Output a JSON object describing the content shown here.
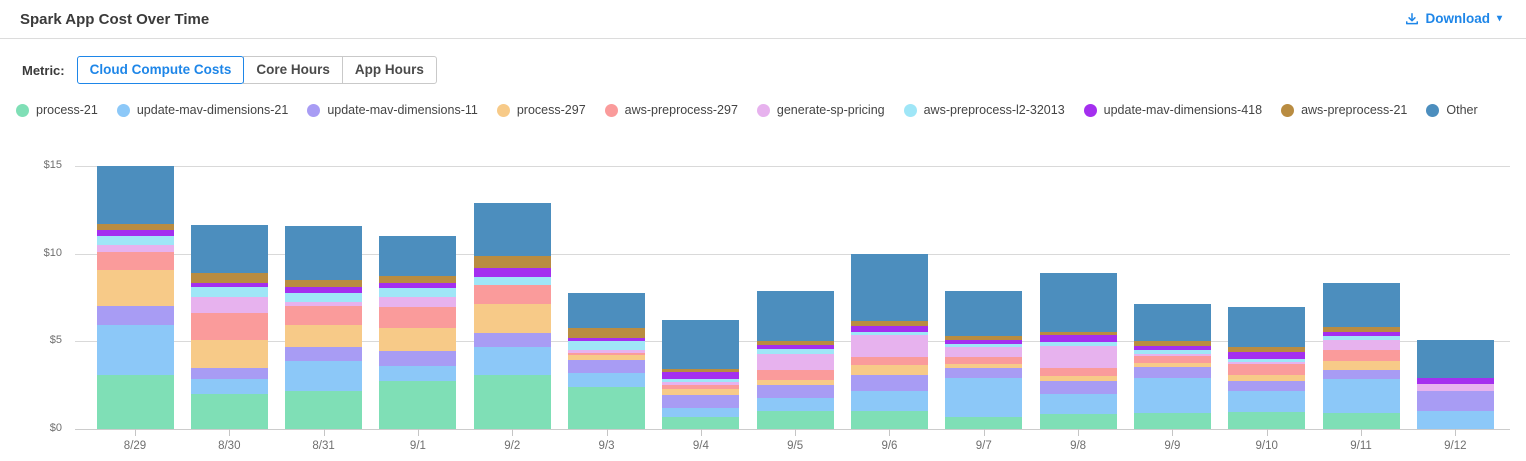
{
  "header": {
    "title": "Spark App Cost Over Time",
    "download_label": "Download"
  },
  "metric": {
    "label": "Metric:",
    "options": [
      {
        "label": "Cloud Compute Costs",
        "selected": true
      },
      {
        "label": "Core Hours",
        "selected": false
      },
      {
        "label": "App Hours",
        "selected": false
      }
    ]
  },
  "colors": {
    "accent_blue": "#1e86e8",
    "grid": "#d9d9d9",
    "axis_text": "#6f6f6f"
  },
  "chart_data": {
    "type": "bar",
    "stacked": true,
    "title": "Spark App Cost Over Time",
    "xlabel": "",
    "ylabel": "",
    "ytick_prefix": "$",
    "yticks": [
      0,
      5,
      10,
      15
    ],
    "ylim": [
      0,
      15.5
    ],
    "grid": true,
    "legend_position": "top",
    "categories": [
      "8/29",
      "8/30",
      "8/31",
      "9/1",
      "9/2",
      "9/3",
      "9/4",
      "9/5",
      "9/6",
      "9/7",
      "9/8",
      "9/9",
      "9/10",
      "9/11",
      "9/12"
    ],
    "series": [
      {
        "name": "process-21",
        "color": "#7fdfb6",
        "values": [
          3.1,
          2.0,
          2.15,
          2.75,
          3.1,
          2.4,
          0.7,
          1.0,
          1.0,
          0.7,
          0.85,
          0.9,
          0.95,
          0.9,
          0.0
        ]
      },
      {
        "name": "update-mav-dimensions-21",
        "color": "#8cc8f8",
        "values": [
          2.85,
          0.85,
          1.7,
          0.85,
          1.55,
          0.8,
          0.5,
          0.75,
          1.15,
          2.2,
          1.15,
          2.0,
          1.2,
          1.95,
          1.05
        ]
      },
      {
        "name": "update-mav-dimensions-11",
        "color": "#a89cf4",
        "values": [
          1.05,
          0.65,
          0.85,
          0.85,
          0.8,
          0.75,
          0.75,
          0.75,
          0.95,
          0.55,
          0.75,
          0.65,
          0.6,
          0.5,
          1.1
        ]
      },
      {
        "name": "process-297",
        "color": "#f7ca88",
        "values": [
          2.05,
          1.55,
          1.2,
          1.3,
          1.7,
          0.25,
          0.35,
          0.3,
          0.55,
          0.25,
          0.25,
          0.2,
          0.35,
          0.55,
          0.0
        ]
      },
      {
        "name": "aws-preprocess-297",
        "color": "#fa9b9b",
        "values": [
          1.05,
          1.55,
          1.1,
          1.2,
          1.05,
          0.15,
          0.2,
          0.55,
          0.45,
          0.4,
          0.45,
          0.4,
          0.6,
          0.6,
          0.0
        ]
      },
      {
        "name": "generate-sp-pricing",
        "color": "#e7b2ee",
        "values": [
          0.4,
          0.95,
          0.25,
          0.55,
          0.0,
          0.15,
          0.2,
          0.95,
          1.25,
          0.55,
          1.3,
          0.15,
          0.1,
          0.55,
          0.4
        ]
      },
      {
        "name": "aws-preprocess-l2-32013",
        "color": "#9fe6f7",
        "values": [
          0.5,
          0.55,
          0.5,
          0.55,
          0.45,
          0.5,
          0.15,
          0.25,
          0.2,
          0.2,
          0.2,
          0.2,
          0.2,
          0.25,
          0.0
        ]
      },
      {
        "name": "update-mav-dimensions-418",
        "color": "#a42fef",
        "values": [
          0.35,
          0.25,
          0.35,
          0.25,
          0.5,
          0.2,
          0.4,
          0.25,
          0.35,
          0.2,
          0.4,
          0.25,
          0.4,
          0.25,
          0.35
        ]
      },
      {
        "name": "aws-preprocess-21",
        "color": "#b98c41",
        "values": [
          0.35,
          0.55,
          0.4,
          0.45,
          0.7,
          0.55,
          0.15,
          0.2,
          0.25,
          0.25,
          0.2,
          0.25,
          0.25,
          0.25,
          0.0
        ]
      },
      {
        "name": "Other",
        "color": "#4c8ebe",
        "values": [
          3.3,
          2.75,
          3.1,
          2.25,
          3.05,
          2.0,
          2.8,
          2.85,
          3.85,
          2.55,
          3.35,
          2.1,
          2.3,
          2.5,
          2.2
        ]
      }
    ]
  }
}
